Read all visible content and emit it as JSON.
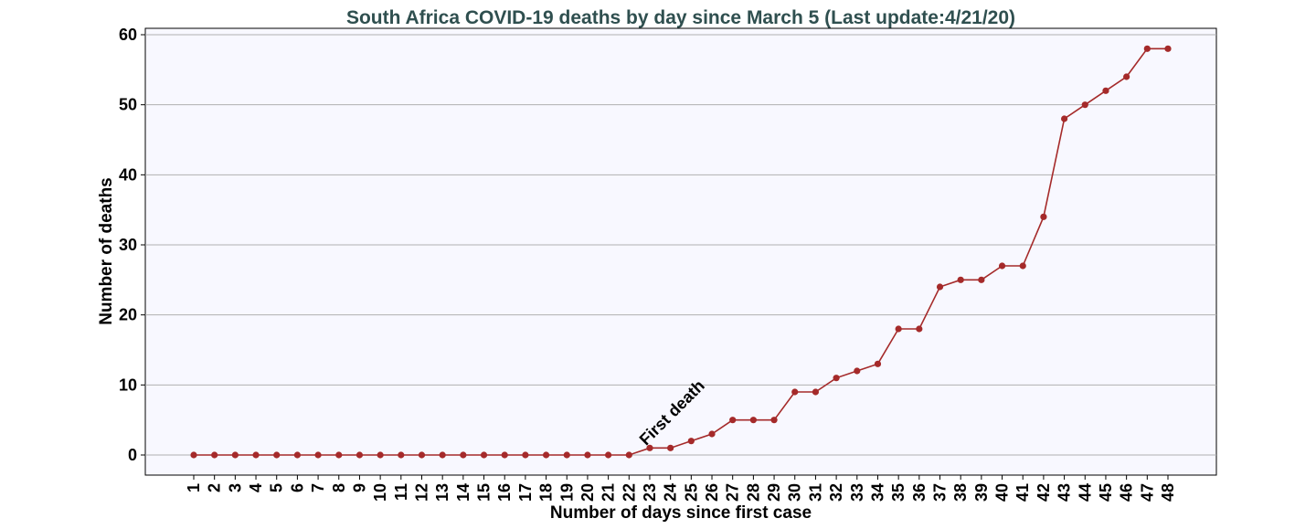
{
  "chart_data": {
    "type": "line",
    "title": "South Africa COVID-19 deaths by day since March 5 (Last update:4/21/20)",
    "xlabel": "Number of days since first case",
    "ylabel": "Number of deaths",
    "x": [
      "1",
      "2",
      "3",
      "4",
      "5",
      "6",
      "7",
      "8",
      "9",
      "10",
      "11",
      "12",
      "13",
      "14",
      "15",
      "16",
      "17",
      "18",
      "19",
      "20",
      "21",
      "22",
      "23",
      "24",
      "25",
      "26",
      "27",
      "28",
      "29",
      "30",
      "31",
      "32",
      "33",
      "34",
      "35",
      "36",
      "37",
      "38",
      "39",
      "40",
      "41",
      "42",
      "43",
      "44",
      "45",
      "46",
      "47",
      "48"
    ],
    "series": [
      {
        "values": [
          0,
          0,
          0,
          0,
          0,
          0,
          0,
          0,
          0,
          0,
          0,
          0,
          0,
          0,
          0,
          0,
          0,
          0,
          0,
          0,
          0,
          0,
          1,
          1,
          2,
          3,
          5,
          5,
          5,
          9,
          9,
          11,
          12,
          13,
          18,
          18,
          24,
          25,
          25,
          27,
          27,
          34,
          48,
          50,
          52,
          54,
          58,
          58
        ],
        "color": "#a52a2a"
      }
    ],
    "yticks": [
      "0",
      "10",
      "20",
      "30",
      "40",
      "50",
      "60"
    ],
    "ylim": [
      -2.9,
      60.9
    ],
    "grid": "horizontal",
    "legend": "none",
    "plot_background": "#f8f8ff",
    "title_color": "#2f4f4f",
    "annotations": [
      {
        "text": "First death",
        "x": "23",
        "y": 1
      }
    ]
  }
}
